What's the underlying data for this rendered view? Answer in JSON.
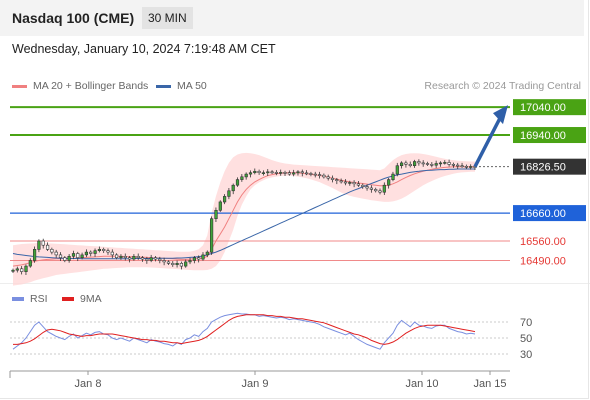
{
  "header": {
    "title": "Nasdaq 100 (CME)",
    "interval": "30 MIN",
    "datetime": "Wednesday, January 10, 2024 7:19:48 AM CET"
  },
  "legend": {
    "bb_label": "MA 20 + Bollinger Bands",
    "ma50_label": "MA 50",
    "credit": "Research © 2024 Trading Central",
    "rsi_label": "RSI",
    "ma9_label": "9MA"
  },
  "colors": {
    "green": "#4aa314",
    "blue": "#1f62d9",
    "red": "#e53935",
    "current": "#333333",
    "ma20": "#f08080",
    "band": "#ffd6d6",
    "ma50": "#3a66a8",
    "rsi": "#7a8fe0",
    "ma9": "#e02020",
    "arrow": "#2f5fa8"
  },
  "chart_data": [
    {
      "type": "candlestick",
      "title": "Nasdaq 100 (CME)",
      "ylim": [
        16420,
        17080
      ],
      "x_ticks": [
        "Jan 8",
        "Jan 9",
        "Jan 10",
        "Jan 15"
      ],
      "levels": [
        {
          "value": 17040.0,
          "label": "17040.00",
          "kind": "resistance",
          "color": "green"
        },
        {
          "value": 16940.0,
          "label": "16940.00",
          "kind": "resistance",
          "color": "green"
        },
        {
          "value": 16826.5,
          "label": "16826.50",
          "kind": "current",
          "color": "current"
        },
        {
          "value": 16660.0,
          "label": "16660.00",
          "kind": "pivot",
          "color": "blue"
        },
        {
          "value": 16560.0,
          "label": "16560.00",
          "kind": "support",
          "color": "red"
        },
        {
          "value": 16490.0,
          "label": "16490.00",
          "kind": "support",
          "color": "red"
        }
      ],
      "closes": [
        16455,
        16460,
        16450,
        16470,
        16490,
        16530,
        16560,
        16545,
        16530,
        16520,
        16510,
        16500,
        16490,
        16505,
        16515,
        16500,
        16510,
        16520,
        16515,
        16525,
        16530,
        16525,
        16520,
        16510,
        16500,
        16505,
        16500,
        16495,
        16505,
        16500,
        16495,
        16490,
        16500,
        16495,
        16490,
        16485,
        16480,
        16475,
        16480,
        16470,
        16485,
        16490,
        16500,
        16495,
        16510,
        16520,
        16640,
        16670,
        16700,
        16720,
        16740,
        16760,
        16780,
        16790,
        16800,
        16805,
        16810,
        16805,
        16805,
        16808,
        16806,
        16804,
        16806,
        16805,
        16800,
        16805,
        16808,
        16804,
        16802,
        16800,
        16798,
        16796,
        16790,
        16785,
        16780,
        16776,
        16772,
        16768,
        16770,
        16765,
        16760,
        16755,
        16750,
        16745,
        16740,
        16735,
        16760,
        16780,
        16800,
        16830,
        16840,
        16835,
        16830,
        16845,
        16840,
        16838,
        16835,
        16832,
        16838,
        16840,
        16842,
        16835,
        16832,
        16830,
        16828,
        16826,
        16827,
        16826.5
      ],
      "ma20": [
        16470,
        16472,
        16474,
        16478,
        16482,
        16487,
        16490,
        16492,
        16494,
        16495,
        16496,
        16496,
        16497,
        16497,
        16498,
        16499,
        16500,
        16501,
        16502,
        16503,
        16504,
        16505,
        16505,
        16505,
        16505,
        16505,
        16504,
        16504,
        16503,
        16502,
        16502,
        16501,
        16500,
        16499,
        16499,
        16498,
        16497,
        16496,
        16495,
        16494,
        16494,
        16495,
        16496,
        16497,
        16499,
        16505,
        16530,
        16560,
        16585,
        16610,
        16640,
        16670,
        16700,
        16725,
        16745,
        16760,
        16772,
        16780,
        16788,
        16794,
        16798,
        16801,
        16803,
        16804,
        16805,
        16805,
        16804,
        16803,
        16801,
        16799,
        16797,
        16795,
        16792,
        16789,
        16785,
        16782,
        16778,
        16775,
        16772,
        16770,
        16768,
        16766,
        16764,
        16762,
        16760,
        16758,
        16758,
        16760,
        16765,
        16772,
        16780,
        16788,
        16795,
        16801,
        16806,
        16810,
        16814,
        16817,
        16820,
        16822,
        16824,
        16825,
        16826,
        16826,
        16826,
        16826,
        16826,
        16826
      ],
      "bb_upper": [
        16545,
        16547,
        16549,
        16550,
        16551,
        16552,
        16553,
        16553,
        16552,
        16551,
        16550,
        16549,
        16548,
        16547,
        16546,
        16545,
        16544,
        16543,
        16542,
        16541,
        16540,
        16539,
        16538,
        16537,
        16536,
        16535,
        16534,
        16533,
        16532,
        16531,
        16530,
        16529,
        16528,
        16527,
        16526,
        16525,
        16524,
        16523,
        16522,
        16521,
        16521,
        16522,
        16525,
        16530,
        16545,
        16580,
        16660,
        16720,
        16770,
        16810,
        16840,
        16860,
        16870,
        16875,
        16876,
        16875,
        16872,
        16868,
        16862,
        16856,
        16850,
        16845,
        16841,
        16838,
        16836,
        16834,
        16833,
        16832,
        16831,
        16830,
        16829,
        16828,
        16827,
        16826,
        16825,
        16824,
        16823,
        16822,
        16821,
        16820,
        16819,
        16818,
        16817,
        16816,
        16815,
        16814,
        16820,
        16835,
        16850,
        16860,
        16868,
        16872,
        16874,
        16875,
        16874,
        16872,
        16869,
        16866,
        16862,
        16858,
        16855,
        16852,
        16850,
        16848,
        16847,
        16846,
        16845,
        16845
      ],
      "bb_lower": [
        16400,
        16402,
        16404,
        16408,
        16412,
        16418,
        16422,
        16426,
        16430,
        16434,
        16438,
        16440,
        16442,
        16444,
        16446,
        16448,
        16450,
        16452,
        16454,
        16456,
        16458,
        16460,
        16461,
        16462,
        16463,
        16464,
        16465,
        16466,
        16466,
        16466,
        16466,
        16466,
        16465,
        16464,
        16463,
        16462,
        16461,
        16460,
        16459,
        16458,
        16457,
        16456,
        16455,
        16455,
        16455,
        16456,
        16460,
        16470,
        16490,
        16520,
        16560,
        16600,
        16650,
        16690,
        16720,
        16745,
        16760,
        16770,
        16778,
        16784,
        16788,
        16791,
        16793,
        16794,
        16794,
        16793,
        16791,
        16788,
        16785,
        16781,
        16776,
        16771,
        16764,
        16757,
        16750,
        16742,
        16734,
        16727,
        16722,
        16718,
        16715,
        16712,
        16709,
        16706,
        16704,
        16702,
        16700,
        16700,
        16702,
        16706,
        16712,
        16720,
        16730,
        16740,
        16750,
        16760,
        16768,
        16775,
        16782,
        16788,
        16793,
        16797,
        16801,
        16804,
        16806,
        16807,
        16808,
        16808
      ],
      "ma50": [
        16515,
        16512,
        16510,
        16508,
        16506,
        16504,
        16503,
        16502,
        16501,
        16500,
        16499,
        16498,
        16498,
        16497,
        16497,
        16497,
        16496,
        16496,
        16496,
        16496,
        16496,
        16496,
        16496,
        16496,
        16496,
        16496,
        16496,
        16496,
        16497,
        16497,
        16497,
        16497,
        16497,
        16498,
        16498,
        16498,
        16498,
        16498,
        16499,
        16499,
        16500,
        16501,
        16502,
        16504,
        16506,
        16510,
        16515,
        16520,
        16526,
        16533,
        16540,
        16547,
        16554,
        16561,
        16568,
        16575,
        16582,
        16589,
        16596,
        16603,
        16610,
        16617,
        16624,
        16631,
        16638,
        16645,
        16652,
        16659,
        16666,
        16673,
        16680,
        16687,
        16694,
        16701,
        16708,
        16715,
        16722,
        16729,
        16736,
        16742,
        16748,
        16754,
        16760,
        16766,
        16772,
        16778,
        16784,
        16789,
        16793,
        16797,
        16800,
        16803,
        16806,
        16808,
        16810,
        16812,
        16813,
        16814,
        16815,
        16816,
        16816,
        16817,
        16817,
        16818,
        16818,
        16818,
        16818,
        16818
      ]
    },
    {
      "type": "line",
      "title": "RSI",
      "ylim": [
        15,
        90
      ],
      "y_ticks": [
        70,
        50,
        30
      ],
      "series": [
        {
          "name": "RSI",
          "values": [
            36,
            40,
            44,
            50,
            58,
            66,
            70,
            64,
            58,
            55,
            52,
            50,
            48,
            52,
            55,
            50,
            53,
            56,
            54,
            57,
            58,
            55,
            54,
            50,
            48,
            50,
            48,
            46,
            50,
            48,
            46,
            44,
            48,
            46,
            45,
            43,
            42,
            40,
            44,
            42,
            48,
            50,
            54,
            52,
            58,
            62,
            70,
            73,
            76,
            78,
            79,
            80,
            81,
            80,
            80,
            79,
            79,
            77,
            78,
            77,
            76,
            75,
            76,
            75,
            73,
            74,
            73,
            72,
            71,
            70,
            69,
            67,
            64,
            62,
            60,
            58,
            56,
            54,
            56,
            52,
            48,
            45,
            42,
            40,
            38,
            36,
            44,
            50,
            56,
            66,
            72,
            68,
            64,
            70,
            66,
            65,
            63,
            62,
            65,
            66,
            66,
            62,
            60,
            58,
            57,
            55,
            56,
            55
          ]
        },
        {
          "name": "9MA",
          "values": [
            42,
            42,
            43,
            44,
            46,
            49,
            53,
            57,
            60,
            61,
            60,
            59,
            57,
            55,
            54,
            53,
            52,
            53,
            53,
            54,
            55,
            55,
            55,
            55,
            54,
            53,
            52,
            51,
            50,
            49,
            48,
            48,
            47,
            47,
            46,
            46,
            45,
            44,
            44,
            43,
            44,
            45,
            46,
            47,
            49,
            52,
            56,
            60,
            64,
            68,
            72,
            75,
            77,
            78,
            79,
            79,
            79,
            79,
            79,
            78,
            78,
            77,
            77,
            76,
            76,
            75,
            74,
            74,
            73,
            72,
            71,
            70,
            69,
            67,
            65,
            63,
            61,
            59,
            57,
            55,
            54,
            52,
            50,
            47,
            45,
            43,
            42,
            43,
            45,
            48,
            52,
            56,
            59,
            62,
            64,
            65,
            66,
            66,
            66,
            66,
            65,
            64,
            63,
            62,
            61,
            60,
            59,
            58
          ]
        }
      ]
    }
  ]
}
